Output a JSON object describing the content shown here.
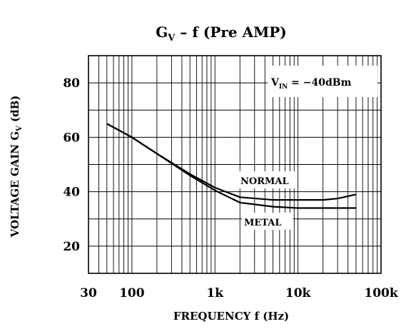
{
  "chart_data": {
    "type": "line",
    "title": {
      "main": "G",
      "sub": "V",
      "rest": " – f (Pre AMP)"
    },
    "xlabel": "FREQUENCY f (Hz)",
    "ylabel": {
      "main": "VOLTAGE GAIN G",
      "sub": "V",
      "rest": " (dB)"
    },
    "x_scale": "log",
    "xlim": [
      30,
      100000
    ],
    "ylim": [
      10,
      90
    ],
    "x_ticks": [
      {
        "value": 30,
        "label": "30"
      },
      {
        "value": 100,
        "label": "100"
      },
      {
        "value": 1000,
        "label": "1k"
      },
      {
        "value": 10000,
        "label": "10k"
      },
      {
        "value": 100000,
        "label": "100k"
      }
    ],
    "y_ticks": [
      {
        "value": 20,
        "label": "20"
      },
      {
        "value": 40,
        "label": "40"
      },
      {
        "value": 60,
        "label": "60"
      },
      {
        "value": 80,
        "label": "80"
      }
    ],
    "grid": true,
    "condition": {
      "main": "V",
      "sub": "IN",
      "rest": " = −40dBm"
    },
    "series": [
      {
        "name": "NORMAL",
        "x": [
          50,
          100,
          200,
          500,
          1000,
          2000,
          5000,
          10000,
          20000,
          30000,
          50000
        ],
        "y": [
          65,
          60,
          54,
          46.5,
          41.5,
          38,
          37,
          37,
          37,
          37.5,
          39
        ]
      },
      {
        "name": "METAL",
        "x": [
          50,
          100,
          200,
          500,
          1000,
          2000,
          5000,
          10000,
          20000,
          30000,
          50000
        ],
        "y": [
          65,
          60,
          54,
          46,
          40.5,
          36,
          34.5,
          34,
          34,
          34,
          34
        ]
      }
    ]
  }
}
